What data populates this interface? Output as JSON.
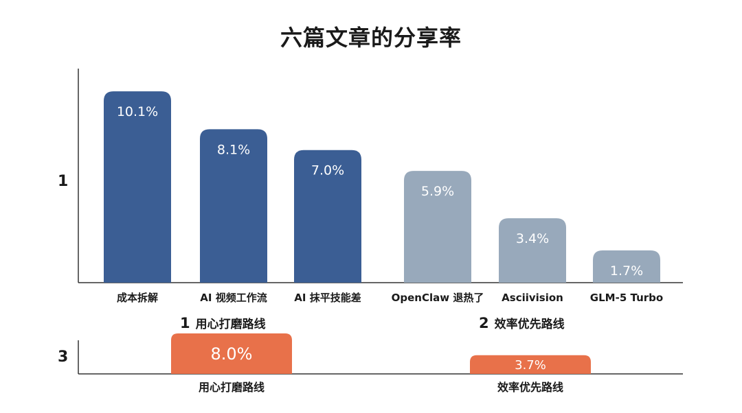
{
  "title": "六篇文章的分享率",
  "section_numbers": {
    "top": "1",
    "bottom": "3"
  },
  "group_labels": [
    {
      "num": "1",
      "text": "用心打磨路线"
    },
    {
      "num": "2",
      "text": "效率优先路线"
    }
  ],
  "colors": {
    "dark": "#3b5e94",
    "light": "#98a9bb",
    "orange": "#e8714a",
    "axis": "#333333"
  },
  "chart_data": [
    {
      "type": "bar",
      "categories": [
        "成本拆解",
        "AI 视频工作流",
        "AI 抹平技能差",
        "OpenClaw 退热了",
        "Asciivision",
        "GLM-5 Turbo"
      ],
      "values": [
        10.1,
        8.1,
        7.0,
        5.9,
        3.4,
        1.7
      ],
      "value_labels": [
        "10.1%",
        "8.1%",
        "7.0%",
        "5.9%",
        "3.4%",
        "1.7%"
      ],
      "groups": [
        "1",
        "1",
        "1",
        "2",
        "2",
        "2"
      ],
      "ylim": [
        0,
        11.3
      ],
      "grid": false
    },
    {
      "type": "bar",
      "categories": [
        "用心打磨路线",
        "效率优先路线"
      ],
      "values": [
        8.0,
        3.7
      ],
      "value_labels": [
        "8.0%",
        "3.7%"
      ],
      "ylim": [
        0,
        8.0
      ],
      "grid": false
    }
  ]
}
